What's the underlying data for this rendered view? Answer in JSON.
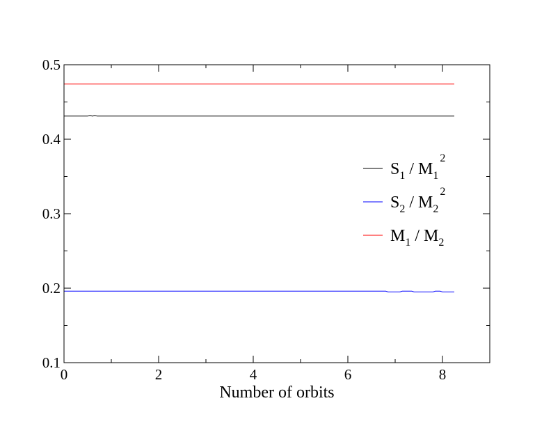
{
  "chart_data": {
    "type": "line",
    "title": "",
    "xlabel": "Number of orbits",
    "ylabel": "",
    "xlim": [
      0,
      9
    ],
    "ylim": [
      0.1,
      0.5
    ],
    "x_ticks": [
      0,
      2,
      4,
      6,
      8
    ],
    "x_tick_labels": [
      "0",
      "2",
      "4",
      "6",
      "8"
    ],
    "y_ticks": [
      0.1,
      0.2,
      0.3,
      0.4,
      0.5
    ],
    "y_tick_labels": [
      "0.1",
      "0.2",
      "0.3",
      "0.4",
      "0.5"
    ],
    "grid": false,
    "legend_position": "right",
    "series": [
      {
        "name": "S1 / M1^2",
        "legend": {
          "a": "S",
          "a_sub": "1",
          "sep": " / M",
          "b_sub": "1",
          "b_sup": "2"
        },
        "color": "#000000",
        "x": [
          0,
          0.5,
          0.55,
          0.6,
          0.65,
          0.7,
          0.75,
          1.0,
          2,
          4,
          6,
          8,
          8.25
        ],
        "y": [
          0.431,
          0.431,
          0.432,
          0.431,
          0.432,
          0.431,
          0.431,
          0.431,
          0.431,
          0.431,
          0.431,
          0.431,
          0.431
        ]
      },
      {
        "name": "S2 / M2^2",
        "legend": {
          "a": "S",
          "a_sub": "2",
          "sep": " / M",
          "b_sub": "2",
          "b_sup": "2"
        },
        "color": "#0000ff",
        "x": [
          0,
          2,
          4,
          6,
          6.8,
          6.85,
          7.1,
          7.15,
          7.35,
          7.4,
          7.8,
          7.85,
          7.95,
          8.0,
          8.25
        ],
        "y": [
          0.196,
          0.196,
          0.196,
          0.196,
          0.196,
          0.195,
          0.195,
          0.196,
          0.196,
          0.195,
          0.195,
          0.196,
          0.196,
          0.195,
          0.195
        ]
      },
      {
        "name": "M1 / M2",
        "legend": {
          "a": "M",
          "a_sub": "1",
          "sep": " / M",
          "b_sub": "2",
          "b_sup": ""
        },
        "color": "#ff0000",
        "x": [
          0,
          8.25
        ],
        "y": [
          0.474,
          0.474
        ]
      }
    ]
  }
}
